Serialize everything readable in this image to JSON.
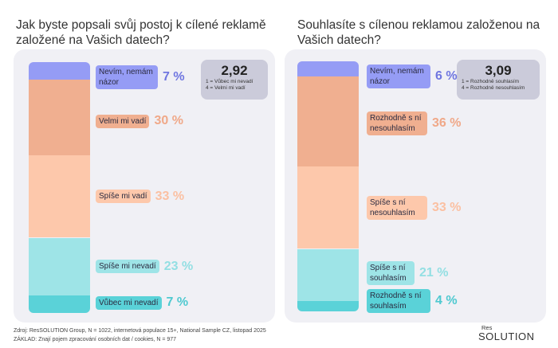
{
  "chart_data": [
    {
      "type": "bar",
      "stacked": true,
      "title": "Jak byste popsali svůj postoj k cílené reklamě založené na Vašich datech?",
      "categories": [
        "Nevím, nemám názor",
        "Velmi mi vadí",
        "Spíše mi vadí",
        "Spíše mi nevadí",
        "Vůbec mi nevadí"
      ],
      "values": [
        7,
        30,
        33,
        23,
        7
      ],
      "value_labels": [
        "7 %",
        "30 %",
        "33 %",
        "23 %",
        "7 %"
      ],
      "colors": [
        "#959cf5",
        "#f0af90",
        "#fdc8ab",
        "#9ee4e7",
        "#5ad2d8"
      ],
      "text_colors": [
        "#6f76e0",
        "#f0a888",
        "#fbc0a2",
        "#93dfe3",
        "#4fc9d0"
      ],
      "average": {
        "value": "2,92",
        "scale": [
          "1 = Vůbec mi nevadí",
          "4 = Velmi mi vadí"
        ]
      }
    },
    {
      "type": "bar",
      "stacked": true,
      "title": "Souhlasíte s cílenou reklamou založenou na Vašich datech?",
      "categories": [
        "Nevím, nemám názor",
        "Rozhodně s ní nesouhlasím",
        "Spíše s ní nesouhlasím",
        "Spíše s ní souhlasím",
        "Rozhodně s ní souhlasím"
      ],
      "values": [
        6,
        36,
        33,
        21,
        4
      ],
      "value_labels": [
        "6 %",
        "36 %",
        "33 %",
        "21 %",
        "4 %"
      ],
      "colors": [
        "#959cf5",
        "#f0af90",
        "#fdc8ab",
        "#9ee4e7",
        "#5ad2d8"
      ],
      "text_colors": [
        "#6f76e0",
        "#f0a888",
        "#fbc0a2",
        "#93dfe3",
        "#4fc9d0"
      ],
      "average": {
        "value": "3,09",
        "scale": [
          "1 = Rozhodně souhlasím",
          "4 = Rozhodně nesouhlasím"
        ]
      }
    }
  ],
  "footer": {
    "source": "Zdroj: ResSOLUTION Group, N = 1022, internetová populace 15+, National Sample CZ, listopad 2025",
    "base": "ZÁKLAD: Znají pojem zpracování osobních dat / cookies, N =  977"
  },
  "logo": {
    "top": "Res",
    "bottom": "SOLUTION"
  }
}
